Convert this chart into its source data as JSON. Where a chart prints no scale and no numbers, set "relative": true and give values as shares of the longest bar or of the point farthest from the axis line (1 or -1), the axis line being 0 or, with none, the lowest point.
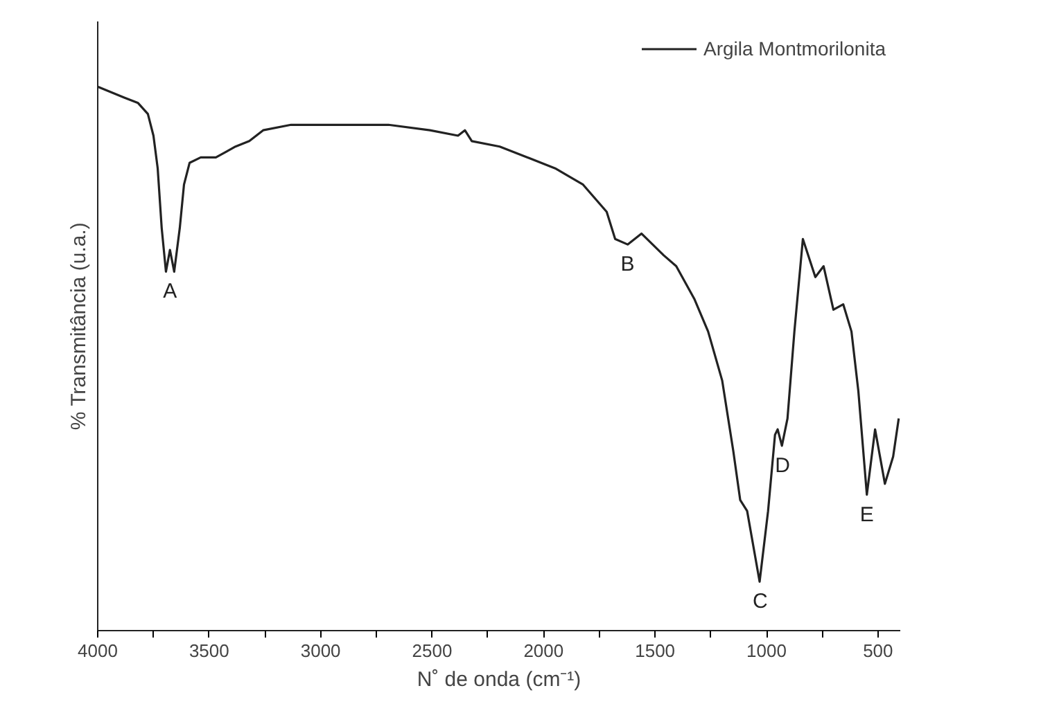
{
  "chart_data": {
    "type": "line",
    "relative": true,
    "xlabel": "N˚ de onda (cm⁻¹)",
    "ylabel": "% Transmitância (u.a.)",
    "xlim": [
      4000,
      400
    ],
    "xticks": [
      4000,
      {
        "value": 3750,
        "label": null
      },
      3500,
      {
        "value": 3250,
        "label": null
      },
      3000,
      {
        "value": 2750,
        "label": null
      },
      2500,
      {
        "value": 2250,
        "label": null
      },
      2000,
      {
        "value": 1750,
        "label": null
      },
      1500,
      {
        "value": 1250,
        "label": null
      },
      1000,
      {
        "value": 750,
        "label": null
      },
      500
    ],
    "tick_labels": "x",
    "grid": false,
    "legend": "top right",
    "marker": "none",
    "line_style": "solid",
    "series": [
      {
        "name": "Argila Montmorilonita",
        "color": "#222222",
        "x": [
          4000,
          3881,
          3819,
          3775,
          3750,
          3731,
          3713,
          3694,
          3676,
          3657,
          3632,
          3613,
          3588,
          3538,
          3507,
          3470,
          3426,
          3382,
          3320,
          3258,
          3133,
          2883,
          2696,
          2510,
          2384,
          2353,
          2322,
          2197,
          2072,
          1948,
          1823,
          1717,
          1679,
          1623,
          1561,
          1461,
          1405,
          1324,
          1262,
          1199,
          1149,
          1118,
          1087,
          1031,
          993,
          962,
          950,
          931,
          906,
          875,
          837,
          781,
          744,
          700,
          656,
          619,
          588,
          550,
          513,
          469,
          432,
          407
        ],
        "values": [
          1.0,
          0.98,
          0.97,
          0.95,
          0.91,
          0.85,
          0.74,
          0.66,
          0.7,
          0.66,
          0.74,
          0.82,
          0.86,
          0.87,
          0.87,
          0.87,
          0.88,
          0.89,
          0.9,
          0.92,
          0.93,
          0.93,
          0.93,
          0.92,
          0.91,
          0.92,
          0.9,
          0.89,
          0.87,
          0.85,
          0.82,
          0.77,
          0.72,
          0.71,
          0.73,
          0.69,
          0.67,
          0.61,
          0.55,
          0.46,
          0.33,
          0.24,
          0.22,
          0.09,
          0.22,
          0.36,
          0.37,
          0.34,
          0.39,
          0.55,
          0.72,
          0.65,
          0.67,
          0.59,
          0.6,
          0.55,
          0.44,
          0.25,
          0.37,
          0.27,
          0.32,
          0.39
        ]
      }
    ],
    "annotations": [
      {
        "text": "A",
        "x": 3676,
        "y": 0.66
      },
      {
        "text": "B",
        "x": 1623,
        "y": 0.71
      },
      {
        "text": "C",
        "x": 1031,
        "y": 0.09
      },
      {
        "text": "D",
        "x": 931,
        "y": 0.34
      },
      {
        "text": "E",
        "x": 550,
        "y": 0.25
      }
    ]
  }
}
